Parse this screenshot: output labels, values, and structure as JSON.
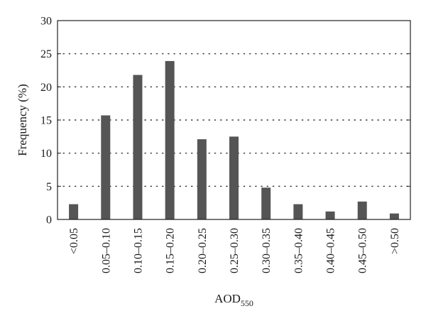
{
  "chart_data": {
    "type": "bar",
    "categories": [
      "<0.05",
      "0.05–0.10",
      "0.10–0.15",
      "0.15–0.20",
      "0.20–0.25",
      "0.25–0.30",
      "0.30–0.35",
      "0.35–0.40",
      "0.40–0.45",
      "0.45–0.50",
      ">0.50"
    ],
    "values": [
      2.3,
      15.7,
      21.8,
      23.9,
      12.1,
      12.5,
      4.8,
      2.3,
      1.2,
      2.7,
      0.9
    ],
    "ylabel": "Frequency (%)",
    "xlabel": {
      "main": "AOD",
      "subscript": "550"
    },
    "ylim": [
      0,
      30
    ],
    "yticks": [
      0,
      5,
      10,
      15,
      20,
      25,
      30
    ],
    "grid": "horizontal dotted",
    "colors": {
      "bar": "#555555",
      "axis": "#222222",
      "grid": "#333333"
    }
  }
}
